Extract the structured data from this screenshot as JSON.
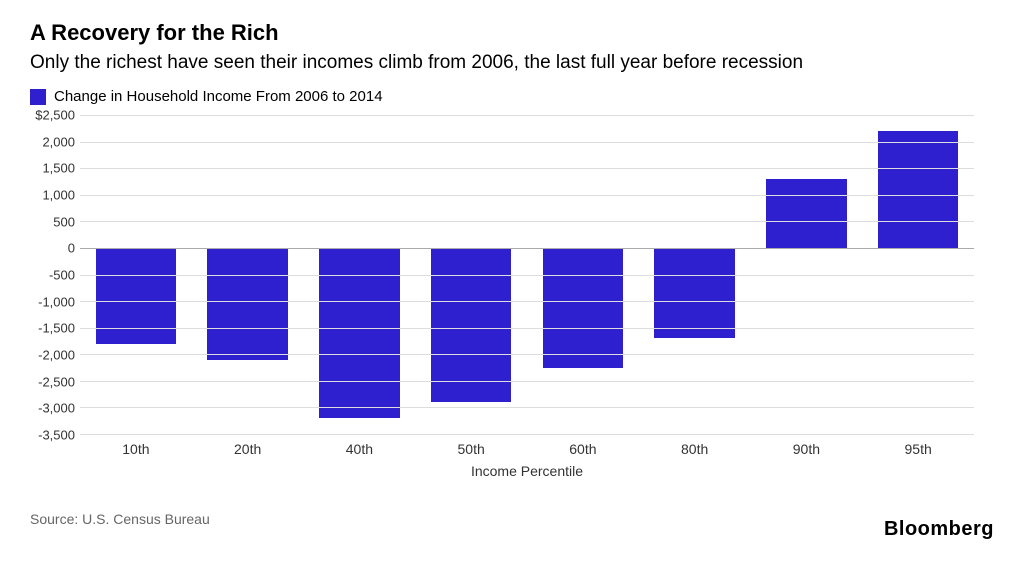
{
  "title": "A Recovery for the Rich",
  "title_fontsize": 22,
  "subtitle": "Only the richest have seen their incomes climb from 2006, the last full year before recession",
  "subtitle_fontsize": 19,
  "legend": {
    "label": "Change in Household Income From 2006 to 2014",
    "swatch_color": "#2e1fcf",
    "fontsize": 15
  },
  "chart": {
    "type": "bar",
    "categories": [
      "10th",
      "20th",
      "40th",
      "50th",
      "60th",
      "80th",
      "90th",
      "95th"
    ],
    "values": [
      -1800,
      -2100,
      -3200,
      -2900,
      -2250,
      -1700,
      1300,
      2200
    ],
    "bar_color": "#2e1fcf",
    "ylim": [
      -3500,
      2500
    ],
    "ytick_step": 500,
    "y_ticks": [
      2500,
      2000,
      1500,
      1000,
      500,
      0,
      -500,
      -1000,
      -1500,
      -2000,
      -2500,
      -3000,
      -3500
    ],
    "y_tick_labels": [
      "$2,500",
      "2,000",
      "1,500",
      "1,000",
      "500",
      "0",
      "-500",
      "-1,000",
      "-1,500",
      "-2,000",
      "-2,500",
      "-3,000",
      "-3,500"
    ],
    "y_tick_fontsize": 13,
    "x_tick_fontsize": 14,
    "xlabel": "Income Percentile",
    "xlabel_fontsize": 14,
    "grid_color": "#dddddd",
    "axis_color": "#888888",
    "background_color": "#ffffff"
  },
  "source": "Source: U.S. Census Bureau",
  "source_fontsize": 14,
  "brand": "Bloomberg",
  "brand_fontsize": 20
}
